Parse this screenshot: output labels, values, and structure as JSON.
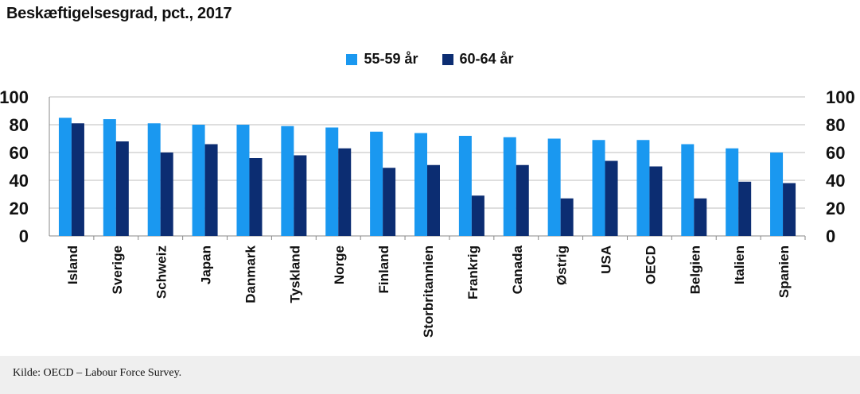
{
  "title": "Beskæftigelsesgrad, pct., 2017",
  "source": "Kilde: OECD – Labour Force Survey.",
  "colors": {
    "series1": "#1a98f0",
    "series2": "#0c2d72",
    "grid": "#bdbdbd"
  },
  "chart_data": {
    "type": "bar",
    "title": "Beskæftigelsesgrad, pct., 2017",
    "categories": [
      "Island",
      "Sverige",
      "Schweiz",
      "Japan",
      "Danmark",
      "Tyskland",
      "Norge",
      "Finland",
      "Storbritannien",
      "Frankrig",
      "Canada",
      "Østrig",
      "USA",
      "OECD",
      "Belgien",
      "Italien",
      "Spanien"
    ],
    "series": [
      {
        "name": "55-59 år",
        "values": [
          85,
          84,
          81,
          80,
          80,
          79,
          78,
          75,
          74,
          72,
          71,
          70,
          69,
          69,
          66,
          63,
          60
        ]
      },
      {
        "name": "60-64 år",
        "values": [
          81,
          68,
          60,
          66,
          56,
          58,
          63,
          49,
          51,
          29,
          51,
          27,
          54,
          50,
          27,
          39,
          38
        ]
      }
    ],
    "ylim": [
      0,
      100
    ],
    "yticks": [
      0,
      20,
      40,
      60,
      80,
      100
    ],
    "grid": true,
    "legend": "top-center",
    "secondary_axis": true
  }
}
